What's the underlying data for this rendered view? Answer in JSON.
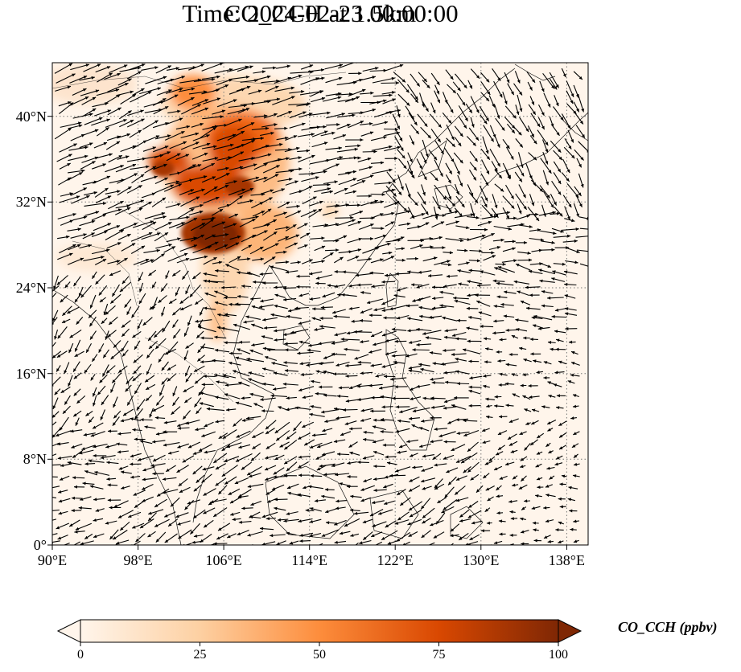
{
  "title_line1": "CO_CCH at 1.5km",
  "title_line2": "Time: 2024-02-23 00:00:00",
  "map": {
    "lon_range": [
      90,
      140
    ],
    "lat_range": [
      0,
      45
    ],
    "lon_ticks": [
      "90°E",
      "98°E",
      "106°E",
      "114°E",
      "122°E",
      "130°E",
      "138°E"
    ],
    "lat_ticks": [
      "0°",
      "8°N",
      "16°N",
      "24°N",
      "32°N",
      "40°N"
    ],
    "gridlines": true,
    "field_name": "CO_CCH",
    "plume_peak_location": "Sichuan Basin, near 104°E 29°N"
  },
  "colorbar": {
    "label": "CO_CCH (ppbv)",
    "ticks": [
      "0",
      "25",
      "50",
      "75",
      "100"
    ],
    "min": 0,
    "max": 100,
    "extend": "both",
    "colors": [
      "#fff5eb",
      "#fdd0a2",
      "#fd8d3c",
      "#d94801",
      "#7f2704"
    ]
  }
}
